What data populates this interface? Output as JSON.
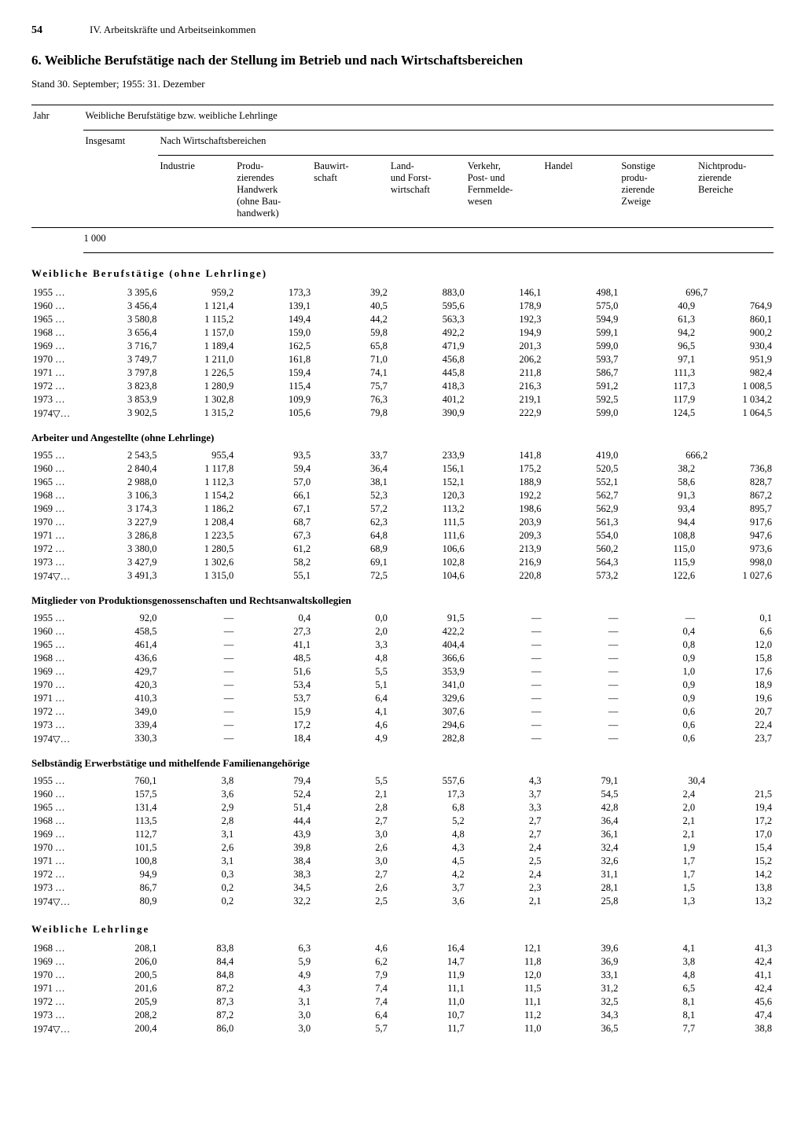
{
  "page": {
    "number": "54",
    "chapter": "IV. Arbeitskräfte und Arbeitseinkommen",
    "title": "6. Weibliche Berufstätige nach der Stellung im Betrieb und nach Wirtschaftsbereichen",
    "subtitle": "Stand 30. September; 1955: 31. Dezember"
  },
  "headers": {
    "jahr": "Jahr",
    "span1": "Weibliche Berufstätige bzw. weibliche Lehrlinge",
    "insgesamt": "Insgesamt",
    "span2": "Nach Wirtschaftsbereichen",
    "industrie": "Industrie",
    "produzierendes": "Produ-\nzierendes\nHandwerk\n(ohne Bau-\nhandwerk)",
    "bauwirt": "Bauwirt-\nschaft",
    "landforst": "Land-\nund Forst-\nwirtschaft",
    "verkehr": "Verkehr,\nPost- und\nFernmelde-\nwesen",
    "handel": "Handel",
    "sonstige": "Sonstige\nprodu-\nzierende\nZweige",
    "nichtprod": "Nichtprodu-\nzierende\nBereiche",
    "unit": "1 000"
  },
  "sections": [
    {
      "title": "Weibliche Berufstätige (ohne Lehrlinge)",
      "spaced": true,
      "rows": [
        {
          "year": "1955 …",
          "total": "3 395,6",
          "d": [
            "959,2",
            "173,3",
            "39,2",
            "883,0",
            "146,1",
            "498,1",
            "",
            "696,7"
          ],
          "merged": true
        },
        {
          "year": "1960 …",
          "total": "3 456,4",
          "d": [
            "1 121,4",
            "139,1",
            "40,5",
            "595,6",
            "178,9",
            "575,0",
            "40,9",
            "764,9"
          ]
        },
        {
          "year": "1965 …",
          "total": "3 580,8",
          "d": [
            "1 115,2",
            "149,4",
            "44,2",
            "563,3",
            "192,3",
            "594,9",
            "61,3",
            "860,1"
          ]
        },
        {
          "year": "1968 …",
          "total": "3 656,4",
          "d": [
            "1 157,0",
            "159,0",
            "59,8",
            "492,2",
            "194,9",
            "599,1",
            "94,2",
            "900,2"
          ]
        },
        {
          "year": "1969 …",
          "total": "3 716,7",
          "d": [
            "1 189,4",
            "162,5",
            "65,8",
            "471,9",
            "201,3",
            "599,0",
            "96,5",
            "930,4"
          ]
        },
        {
          "year": "1970 …",
          "total": "3 749,7",
          "d": [
            "1 211,0",
            "161,8",
            "71,0",
            "456,8",
            "206,2",
            "593,7",
            "97,1",
            "951,9"
          ]
        },
        {
          "year": "1971 …",
          "total": "3 797,8",
          "d": [
            "1 226,5",
            "159,4",
            "74,1",
            "445,8",
            "211,8",
            "586,7",
            "111,3",
            "982,4"
          ]
        },
        {
          "year": "1972 …",
          "total": "3 823,8",
          "d": [
            "1 280,9",
            "115,4",
            "75,7",
            "418,3",
            "216,3",
            "591,2",
            "117,3",
            "1 008,5"
          ]
        },
        {
          "year": "1973 …",
          "total": "3 853,9",
          "d": [
            "1 302,8",
            "109,9",
            "76,3",
            "401,2",
            "219,1",
            "592,5",
            "117,9",
            "1 034,2"
          ]
        },
        {
          "year": "1974▽…",
          "total": "3 902,5",
          "d": [
            "1 315,2",
            "105,6",
            "79,8",
            "390,9",
            "222,9",
            "599,0",
            "124,5",
            "1 064,5"
          ]
        }
      ]
    },
    {
      "title": "Arbeiter und Angestellte (ohne Lehrlinge)",
      "spaced": false,
      "rows": [
        {
          "year": "1955 …",
          "total": "2 543,5",
          "d": [
            "955,4",
            "93,5",
            "33,7",
            "233,9",
            "141,8",
            "419,0",
            "",
            "666,2"
          ],
          "merged": true
        },
        {
          "year": "1960 …",
          "total": "2 840,4",
          "d": [
            "1 117,8",
            "59,4",
            "36,4",
            "156,1",
            "175,2",
            "520,5",
            "38,2",
            "736,8"
          ]
        },
        {
          "year": "1965 …",
          "total": "2 988,0",
          "d": [
            "1 112,3",
            "57,0",
            "38,1",
            "152,1",
            "188,9",
            "552,1",
            "58,6",
            "828,7"
          ]
        },
        {
          "year": "1968 …",
          "total": "3 106,3",
          "d": [
            "1 154,2",
            "66,1",
            "52,3",
            "120,3",
            "192,2",
            "562,7",
            "91,3",
            "867,2"
          ]
        },
        {
          "year": "1969 …",
          "total": "3 174,3",
          "d": [
            "1 186,2",
            "67,1",
            "57,2",
            "113,2",
            "198,6",
            "562,9",
            "93,4",
            "895,7"
          ]
        },
        {
          "year": "1970 …",
          "total": "3 227,9",
          "d": [
            "1 208,4",
            "68,7",
            "62,3",
            "111,5",
            "203,9",
            "561,3",
            "94,4",
            "917,6"
          ]
        },
        {
          "year": "1971 …",
          "total": "3 286,8",
          "d": [
            "1 223,5",
            "67,3",
            "64,8",
            "111,6",
            "209,3",
            "554,0",
            "108,8",
            "947,6"
          ]
        },
        {
          "year": "1972 …",
          "total": "3 380,0",
          "d": [
            "1 280,5",
            "61,2",
            "68,9",
            "106,6",
            "213,9",
            "560,2",
            "115,0",
            "973,6"
          ]
        },
        {
          "year": "1973 …",
          "total": "3 427,9",
          "d": [
            "1 302,6",
            "58,2",
            "69,1",
            "102,8",
            "216,9",
            "564,3",
            "115,9",
            "998,0"
          ]
        },
        {
          "year": "1974▽…",
          "total": "3 491,3",
          "d": [
            "1 315,0",
            "55,1",
            "72,5",
            "104,6",
            "220,8",
            "573,2",
            "122,6",
            "1 027,6"
          ]
        }
      ]
    },
    {
      "title": "Mitglieder von Produktionsgenossenschaften und Rechtsanwaltskollegien",
      "spaced": false,
      "rows": [
        {
          "year": "1955 …",
          "total": "92,0",
          "d": [
            "—",
            "0,4",
            "0,0",
            "91,5",
            "—",
            "—",
            "—",
            "0,1"
          ]
        },
        {
          "year": "1960 …",
          "total": "458,5",
          "d": [
            "—",
            "27,3",
            "2,0",
            "422,2",
            "—",
            "—",
            "0,4",
            "6,6"
          ]
        },
        {
          "year": "1965 …",
          "total": "461,4",
          "d": [
            "—",
            "41,1",
            "3,3",
            "404,4",
            "—",
            "—",
            "0,8",
            "12,0"
          ]
        },
        {
          "year": "1968 …",
          "total": "436,6",
          "d": [
            "—",
            "48,5",
            "4,8",
            "366,6",
            "—",
            "—",
            "0,9",
            "15,8"
          ]
        },
        {
          "year": "1969 …",
          "total": "429,7",
          "d": [
            "—",
            "51,6",
            "5,5",
            "353,9",
            "—",
            "—",
            "1,0",
            "17,6"
          ]
        },
        {
          "year": "1970 …",
          "total": "420,3",
          "d": [
            "—",
            "53,4",
            "5,1",
            "341,0",
            "—",
            "—",
            "0,9",
            "18,9"
          ]
        },
        {
          "year": "1971 …",
          "total": "410,3",
          "d": [
            "—",
            "53,7",
            "6,4",
            "329,6",
            "—",
            "—",
            "0,9",
            "19,6"
          ]
        },
        {
          "year": "1972 …",
          "total": "349,0",
          "d": [
            "—",
            "15,9",
            "4,1",
            "307,6",
            "—",
            "—",
            "0,6",
            "20,7"
          ]
        },
        {
          "year": "1973 …",
          "total": "339,4",
          "d": [
            "—",
            "17,2",
            "4,6",
            "294,6",
            "—",
            "—",
            "0,6",
            "22,4"
          ]
        },
        {
          "year": "1974▽…",
          "total": "330,3",
          "d": [
            "—",
            "18,4",
            "4,9",
            "282,8",
            "—",
            "—",
            "0,6",
            "23,7"
          ]
        }
      ]
    },
    {
      "title": "Selbständig Erwerbstätige und mithelfende Familienangehörige",
      "spaced": false,
      "rows": [
        {
          "year": "1955 …",
          "total": "760,1",
          "d": [
            "3,8",
            "79,4",
            "5,5",
            "557,6",
            "4,3",
            "79,1",
            "",
            "30,4"
          ],
          "merged": true
        },
        {
          "year": "1960 …",
          "total": "157,5",
          "d": [
            "3,6",
            "52,4",
            "2,1",
            "17,3",
            "3,7",
            "54,5",
            "2,4",
            "21,5"
          ]
        },
        {
          "year": "1965 …",
          "total": "131,4",
          "d": [
            "2,9",
            "51,4",
            "2,8",
            "6,8",
            "3,3",
            "42,8",
            "2,0",
            "19,4"
          ]
        },
        {
          "year": "1968 …",
          "total": "113,5",
          "d": [
            "2,8",
            "44,4",
            "2,7",
            "5,2",
            "2,7",
            "36,4",
            "2,1",
            "17,2"
          ]
        },
        {
          "year": "1969 …",
          "total": "112,7",
          "d": [
            "3,1",
            "43,9",
            "3,0",
            "4,8",
            "2,7",
            "36,1",
            "2,1",
            "17,0"
          ]
        },
        {
          "year": "1970 …",
          "total": "101,5",
          "d": [
            "2,6",
            "39,8",
            "2,6",
            "4,3",
            "2,4",
            "32,4",
            "1,9",
            "15,4"
          ]
        },
        {
          "year": "1971 …",
          "total": "100,8",
          "d": [
            "3,1",
            "38,4",
            "3,0",
            "4,5",
            "2,5",
            "32,6",
            "1,7",
            "15,2"
          ]
        },
        {
          "year": "1972 …",
          "total": "94,9",
          "d": [
            "0,3",
            "38,3",
            "2,7",
            "4,2",
            "2,4",
            "31,1",
            "1,7",
            "14,2"
          ]
        },
        {
          "year": "1973 …",
          "total": "86,7",
          "d": [
            "0,2",
            "34,5",
            "2,6",
            "3,7",
            "2,3",
            "28,1",
            "1,5",
            "13,8"
          ]
        },
        {
          "year": "1974▽…",
          "total": "80,9",
          "d": [
            "0,2",
            "32,2",
            "2,5",
            "3,6",
            "2,1",
            "25,8",
            "1,3",
            "13,2"
          ]
        }
      ]
    },
    {
      "title": "Weibliche Lehrlinge",
      "spaced": true,
      "rows": [
        {
          "year": "1968 …",
          "total": "208,1",
          "d": [
            "83,8",
            "6,3",
            "4,6",
            "16,4",
            "12,1",
            "39,6",
            "4,1",
            "41,3"
          ]
        },
        {
          "year": "1969 …",
          "total": "206,0",
          "d": [
            "84,4",
            "5,9",
            "6,2",
            "14,7",
            "11,8",
            "36,9",
            "3,8",
            "42,4"
          ]
        },
        {
          "year": "1970 …",
          "total": "200,5",
          "d": [
            "84,8",
            "4,9",
            "7,9",
            "11,9",
            "12,0",
            "33,1",
            "4,8",
            "41,1"
          ]
        },
        {
          "year": "1971 …",
          "total": "201,6",
          "d": [
            "87,2",
            "4,3",
            "7,4",
            "11,1",
            "11,5",
            "31,2",
            "6,5",
            "42,4"
          ]
        },
        {
          "year": "1972 …",
          "total": "205,9",
          "d": [
            "87,3",
            "3,1",
            "7,4",
            "11,0",
            "11,1",
            "32,5",
            "8,1",
            "45,6"
          ]
        },
        {
          "year": "1973 …",
          "total": "208,2",
          "d": [
            "87,2",
            "3,0",
            "6,4",
            "10,7",
            "11,2",
            "34,3",
            "8,1",
            "47,4"
          ]
        },
        {
          "year": "1974▽…",
          "total": "200,4",
          "d": [
            "86,0",
            "3,0",
            "5,7",
            "11,7",
            "11,0",
            "36,5",
            "7,7",
            "38,8"
          ]
        }
      ]
    }
  ]
}
